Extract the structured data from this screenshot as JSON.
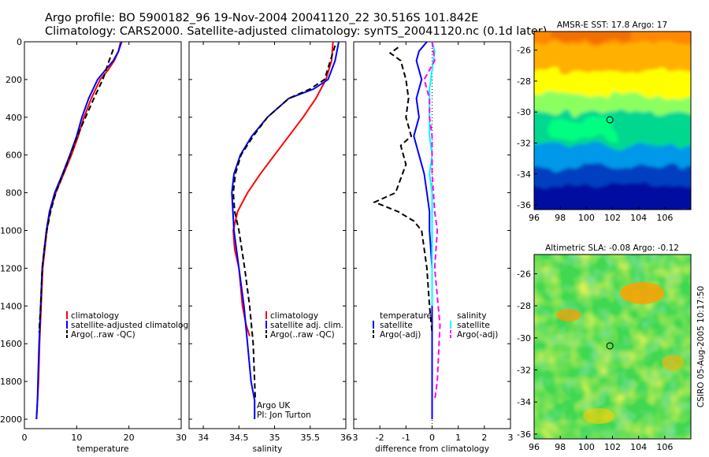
{
  "header": {
    "line1": "Argo profile: BO 5900182_96 19-Nov-2004 20041120_22 30.516S 101.842E",
    "line2": "Climatology: CARS2000. Satellite-adjusted climatology: synTS_20041120.nc (0.1d later)"
  },
  "colors": {
    "climatology": "#ff0000",
    "satellite": "#0000ff",
    "argo": "#000000",
    "sal_satellite": "#00ffff",
    "sal_argo": "#ff00ff"
  },
  "chart_data": [
    {
      "type": "line",
      "xlabel": "temperature",
      "xlim": [
        0,
        30
      ],
      "xticks": [
        0,
        10,
        20,
        30
      ],
      "ylim": [
        0,
        2050
      ],
      "yticks": [
        0,
        200,
        400,
        600,
        800,
        1000,
        1200,
        1400,
        1600,
        1800,
        2000
      ],
      "y_reversed": true,
      "legend": [
        "climatology",
        "satellite-adjusted climatology",
        "Argo(..raw -QC)"
      ],
      "series": [
        {
          "name": "climatology",
          "color": "#ff0000",
          "style": "solid",
          "x": [
            18.4,
            18.0,
            17.2,
            16.0,
            14.5,
            12.8,
            11.4,
            10.3,
            9.0,
            7.5,
            6.0,
            4.9,
            4.3,
            3.9,
            3.5,
            3.2,
            2.9,
            2.7,
            2.5,
            2.3
          ],
          "y": [
            0,
            50,
            100,
            150,
            200,
            300,
            400,
            500,
            600,
            700,
            800,
            900,
            1000,
            1100,
            1200,
            1400,
            1600,
            1800,
            1900,
            2000
          ]
        },
        {
          "name": "satellite-adjusted climatology",
          "color": "#0000ff",
          "style": "solid",
          "x": [
            18.6,
            18.0,
            17.0,
            15.5,
            14.0,
            12.3,
            11.0,
            10.0,
            8.7,
            7.3,
            5.8,
            4.8,
            4.2,
            3.8,
            3.4,
            3.1,
            2.8,
            2.6,
            2.5,
            2.3
          ],
          "y": [
            0,
            50,
            100,
            150,
            200,
            300,
            400,
            500,
            600,
            700,
            800,
            900,
            1000,
            1100,
            1200,
            1400,
            1600,
            1800,
            1900,
            2000
          ]
        },
        {
          "name": "Argo(..raw -QC)",
          "color": "#000000",
          "style": "dashed",
          "x": [
            17.0,
            16.2,
            15.0,
            13.3,
            11.7,
            10.1,
            8.8,
            7.4,
            6.0,
            5.0,
            4.3,
            3.8,
            3.4,
            3.1,
            2.8
          ],
          "y": [
            40,
            100,
            200,
            300,
            400,
            500,
            600,
            700,
            800,
            900,
            1000,
            1100,
            1200,
            1400,
            1540
          ]
        }
      ]
    },
    {
      "type": "line",
      "xlabel": "salinity",
      "xlim": [
        33.8,
        36.0
      ],
      "xticks": [
        34,
        34.5,
        35,
        35.5,
        36
      ],
      "ylim": [
        0,
        2050
      ],
      "y_reversed": true,
      "legend": [
        "climatology",
        "satellite adj. clim.",
        "Argo(..raw -QC)"
      ],
      "annotations": [
        "Argo UK",
        "PI: Jon Turton"
      ],
      "series": [
        {
          "name": "climatology",
          "color": "#ff0000",
          "style": "solid",
          "x": [
            35.82,
            35.8,
            35.72,
            35.58,
            35.4,
            35.2,
            35.0,
            34.8,
            34.62,
            34.48,
            34.42,
            34.44,
            34.5,
            34.55,
            34.6,
            34.65
          ],
          "y": [
            0,
            100,
            200,
            300,
            400,
            500,
            600,
            700,
            800,
            900,
            1000,
            1100,
            1200,
            1400,
            1500,
            1560
          ]
        },
        {
          "name": "satellite adj. clim.",
          "color": "#0000ff",
          "style": "solid",
          "x": [
            35.9,
            35.85,
            35.75,
            35.55,
            35.2,
            34.9,
            34.68,
            34.52,
            34.43,
            34.4,
            34.43,
            34.5,
            34.57,
            34.62,
            34.67,
            34.72,
            34.72
          ],
          "y": [
            0,
            100,
            200,
            250,
            300,
            400,
            500,
            600,
            700,
            800,
            1000,
            1200,
            1400,
            1600,
            1800,
            1900,
            2000
          ]
        },
        {
          "name": "Argo(..raw -QC)",
          "color": "#000000",
          "style": "dashed",
          "x": [
            35.85,
            35.7,
            35.5,
            35.2,
            34.9,
            34.7,
            34.53,
            34.45,
            34.42,
            34.44,
            34.5,
            34.58,
            34.65,
            34.7,
            34.72,
            34.73
          ],
          "y": [
            20,
            200,
            250,
            300,
            400,
            500,
            600,
            700,
            800,
            900,
            1000,
            1200,
            1400,
            1600,
            1800,
            1900
          ]
        }
      ]
    },
    {
      "type": "line",
      "xlabel": "difference from climatology",
      "xlim": [
        -3,
        3
      ],
      "xticks": [
        -3,
        -2,
        -1,
        0,
        1,
        2,
        3
      ],
      "ylim": [
        0,
        2050
      ],
      "y_reversed": true,
      "legend_groups": [
        {
          "title": "temperature",
          "items": [
            "satellite",
            "Argo(-adj)"
          ]
        },
        {
          "title": "salinity",
          "items": [
            "satellite",
            "Argo(-adj)"
          ]
        }
      ],
      "series": [
        {
          "name": "temperature satellite",
          "color": "#0000ff",
          "style": "solid",
          "x": [
            -0.2,
            -0.5,
            -0.6,
            -0.4,
            -0.6,
            -0.5,
            -0.7,
            -0.5,
            -0.3,
            -0.2,
            -0.1,
            -0.1,
            0.0,
            0.0,
            0.0,
            0.0,
            0.0
          ],
          "y": [
            0,
            50,
            100,
            200,
            300,
            400,
            500,
            600,
            700,
            800,
            900,
            1000,
            1200,
            1400,
            1600,
            1800,
            2000
          ]
        },
        {
          "name": "temperature Argo(-adj)",
          "color": "#000000",
          "style": "dashed",
          "x": [
            -1.3,
            -1.6,
            -1.2,
            -1.0,
            -0.9,
            -1.0,
            -0.8,
            -1.2,
            -1.0,
            -1.4,
            -2.2,
            -1.3,
            -0.7,
            -0.4,
            -0.2,
            -0.1,
            0.0
          ],
          "y": [
            30,
            60,
            100,
            200,
            300,
            400,
            500,
            550,
            650,
            800,
            850,
            900,
            950,
            1000,
            1200,
            1400,
            1540
          ]
        },
        {
          "name": "salinity satellite",
          "color": "#00ffff",
          "style": "solid",
          "x": [
            0.0,
            0.1,
            0.0,
            -0.1,
            -0.1,
            -0.1,
            0.0,
            -0.1,
            0.0,
            0.0,
            0.0,
            0.0,
            0.0,
            0.0,
            0.0
          ],
          "y": [
            0,
            50,
            150,
            250,
            350,
            500,
            600,
            700,
            800,
            900,
            1000,
            1100,
            1200,
            1300,
            1400
          ]
        },
        {
          "name": "salinity Argo(-adj)",
          "color": "#ff00ff",
          "style": "dashed",
          "x": [
            0.0,
            0.1,
            -0.3,
            -0.1,
            -0.1,
            0.0,
            0.0,
            0.1,
            0.2,
            0.1,
            0.3,
            0.2,
            0.1
          ],
          "y": [
            0,
            100,
            200,
            300,
            400,
            500,
            700,
            900,
            1000,
            1200,
            1500,
            1800,
            1900
          ]
        }
      ]
    },
    {
      "type": "heatmap",
      "title": "AMSR-E SST: 17.8 Argo: 17",
      "xlim": [
        96,
        108
      ],
      "xticks": [
        96,
        98,
        100,
        102,
        104,
        106
      ],
      "ylim": [
        -36.3,
        -24.8
      ],
      "yticks": [
        -26,
        -28,
        -30,
        -32,
        -34,
        -36
      ],
      "marker": {
        "x": 101.8,
        "y": -30.5
      },
      "colormap": "jet"
    },
    {
      "type": "heatmap",
      "title": "Altimetric SLA: -0.08 Argo: -0.12",
      "xlim": [
        96,
        108
      ],
      "xticks": [
        96,
        98,
        100,
        102,
        104,
        106
      ],
      "ylim": [
        -36.3,
        -24.8
      ],
      "yticks": [
        -26,
        -28,
        -30,
        -32,
        -34,
        -36
      ],
      "marker": {
        "x": 101.8,
        "y": -30.5
      },
      "colormap": "jet"
    }
  ],
  "sidebar_label": "CSIRO 05-Aug-2005 10:17:50"
}
